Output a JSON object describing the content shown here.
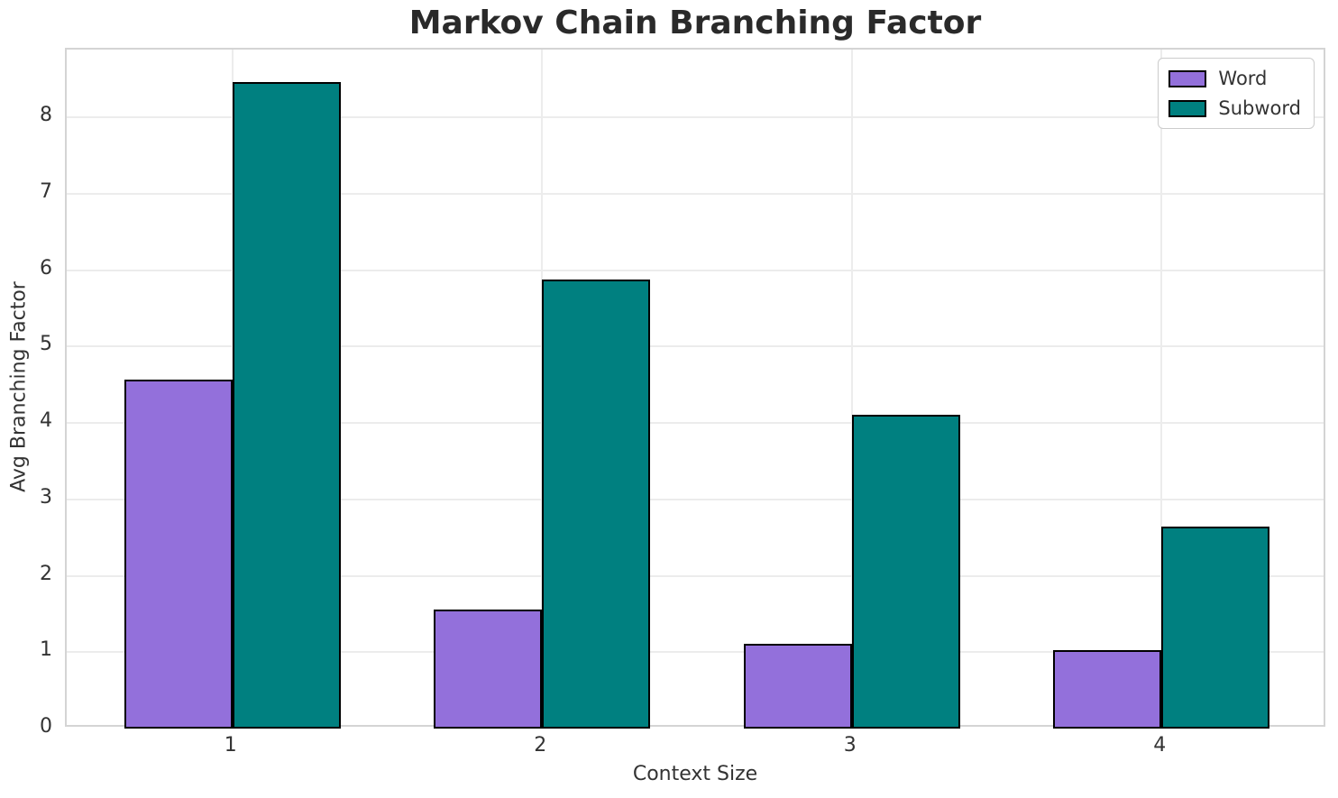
{
  "figure": {
    "title": "Markov Chain Branching Factor"
  },
  "legend": {
    "items": [
      {
        "label": "Word",
        "color": "#9370DB"
      },
      {
        "label": "Subword",
        "color": "#008080"
      }
    ]
  },
  "chart_data": {
    "type": "bar",
    "title": "Markov Chain Branching Factor",
    "xlabel": "Context Size",
    "ylabel": "Avg Branching Factor",
    "categories": [
      "1",
      "2",
      "3",
      "4"
    ],
    "series": [
      {
        "name": "Word",
        "color": "#9370DB",
        "values": [
          4.57,
          1.56,
          1.11,
          1.03
        ]
      },
      {
        "name": "Subword",
        "color": "#008080",
        "values": [
          8.47,
          5.88,
          4.11,
          2.65
        ]
      }
    ],
    "yticks": [
      0,
      1,
      2,
      3,
      4,
      5,
      6,
      7,
      8
    ],
    "ylim": [
      0,
      8.89
    ],
    "xlim": [
      0.465,
      4.535
    ],
    "bar_width": 0.35,
    "group_offset": 0.175,
    "bar_edge_color": "#000000",
    "grid": true,
    "legend_position": "upper right",
    "colors": {
      "grid": "#ececec",
      "spine": "#d4d4d4",
      "title_text": "#2a2a2a",
      "tick_text": "#333333"
    }
  }
}
